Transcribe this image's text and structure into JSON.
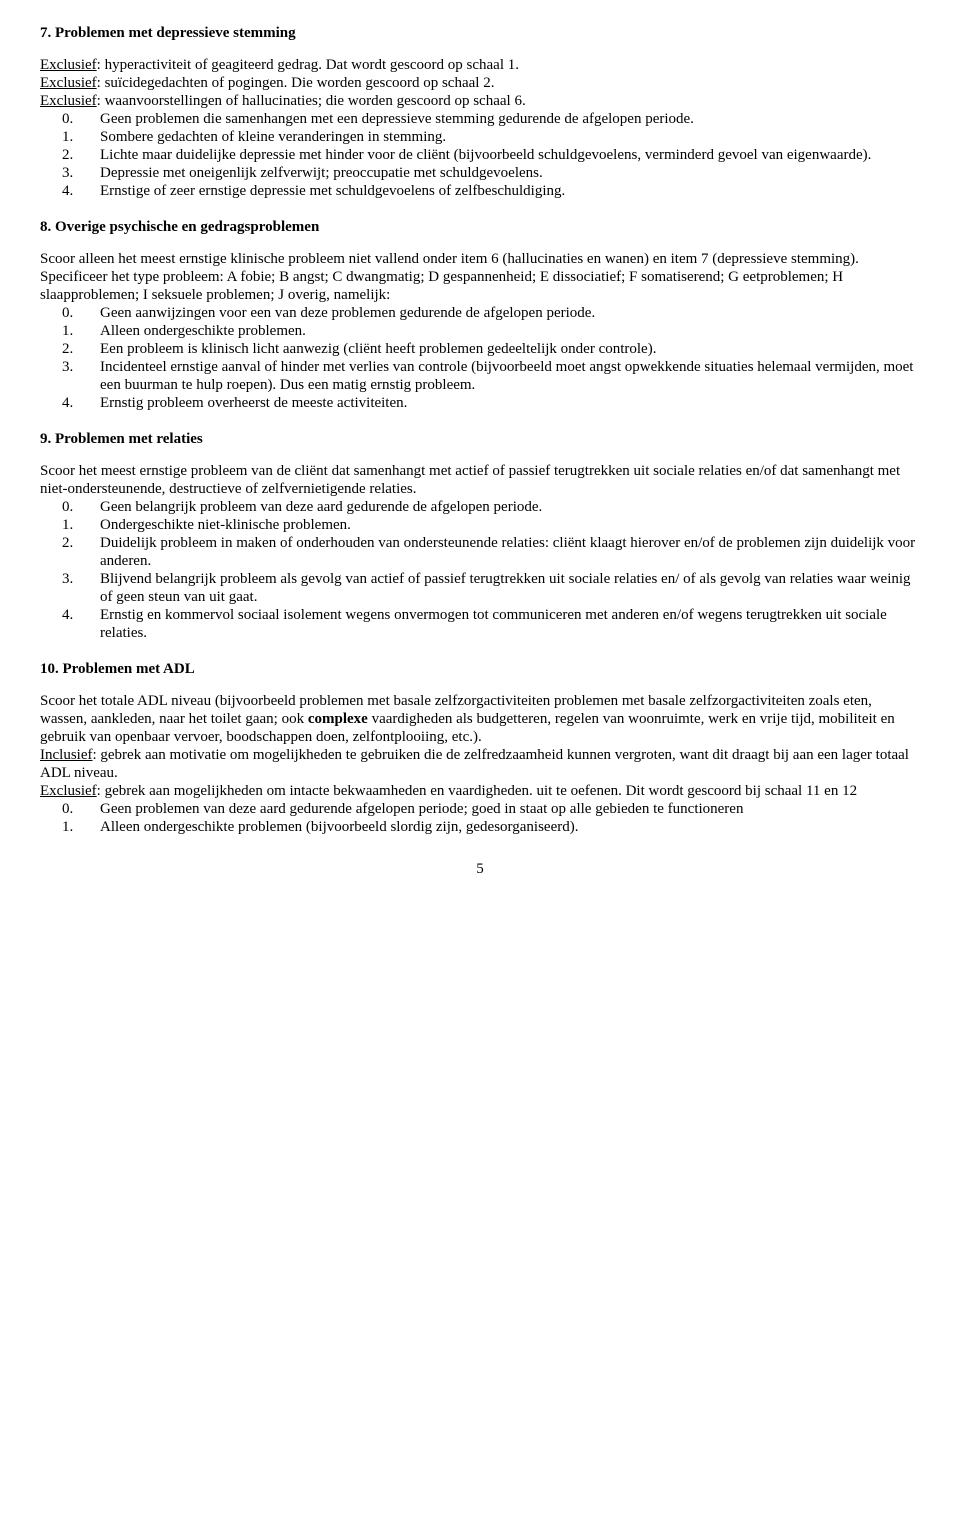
{
  "page_number": "5",
  "sections": [
    {
      "heading": "7. Problemen met depressieve stemming",
      "intro": [
        {
          "underlined": "Exclusief",
          "rest": ": hyperactiviteit of geagiteerd gedrag. Dat wordt gescoord op schaal 1."
        },
        {
          "underlined": "Exclusief",
          "rest": ": suïcidegedachten of pogingen. Die worden gescoord op schaal 2."
        },
        {
          "underlined": "Exclusief",
          "rest": ": waanvoorstellingen of hallucinaties; die worden gescoord op schaal 6."
        }
      ],
      "items": [
        {
          "n": "0.",
          "t": "Geen problemen die samenhangen met een depressieve stemming gedurende de afgelopen periode."
        },
        {
          "n": "1.",
          "t": "Sombere gedachten of kleine veranderingen in stemming."
        },
        {
          "n": "2.",
          "t": "Lichte maar duidelijke depressie met hinder voor de cliënt (bijvoorbeeld schuldgevoelens, verminderd gevoel van eigenwaarde)."
        },
        {
          "n": "3.",
          "t": "Depressie met oneigenlijk zelfverwijt; preoccupatie met schuldgevoelens."
        },
        {
          "n": "4.",
          "t": "Ernstige of zeer ernstige depressie met schuldgevoelens of zelfbeschuldiging."
        }
      ]
    },
    {
      "heading": "8. Overige psychische en gedragsproblemen",
      "intro_plain": [
        "Scoor alleen het meest ernstige klinische probleem niet vallend onder item 6 (hallucinaties en wanen) en item 7 (depressieve stemming).",
        "Specificeer het type probleem: A fobie; B angst; C dwangmatig; D gespannenheid; E dissociatief; F somatiserend; G eetproblemen; H slaapproblemen; I seksuele problemen; J overig, namelijk:"
      ],
      "items": [
        {
          "n": "0.",
          "t": "Geen aanwijzingen voor een van deze problemen gedurende de afgelopen periode."
        },
        {
          "n": "1.",
          "t": "Alleen ondergeschikte problemen."
        },
        {
          "n": "2.",
          "t": "Een probleem is klinisch licht aanwezig (cliënt heeft problemen gedeeltelijk onder controle)."
        },
        {
          "n": "3.",
          "t": "Incidenteel ernstige aanval of hinder met verlies van controle (bijvoorbeeld moet angst opwekkende situaties helemaal vermijden, moet een buurman te hulp roepen). Dus een matig ernstig probleem."
        },
        {
          "n": "4.",
          "t": "Ernstig probleem overheerst de meeste activiteiten."
        }
      ]
    },
    {
      "heading": "9. Problemen met relaties",
      "intro_plain": [
        "Scoor het meest ernstige probleem van de cliënt dat samenhangt met actief of passief terugtrekken uit sociale relaties en/of dat samenhangt met niet-ondersteunende, destructieve of zelfvernietigende relaties."
      ],
      "items": [
        {
          "n": "0.",
          "t": "Geen belangrijk probleem van deze aard gedurende de afgelopen periode."
        },
        {
          "n": "1.",
          "t": "Ondergeschikte niet-klinische problemen."
        },
        {
          "n": "2.",
          "t": "Duidelijk probleem in maken of onderhouden van ondersteunende relaties: cliënt klaagt hierover en/of de problemen zijn duidelijk voor anderen."
        },
        {
          "n": "3.",
          "t": "Blijvend belangrijk probleem als gevolg van actief of passief terugtrekken uit sociale relaties en/ of als gevolg van relaties waar weinig of geen steun van uit gaat."
        },
        {
          "n": "4.",
          "t": "Ernstig en kommervol sociaal isolement wegens onvermogen tot communiceren met anderen en/of  wegens terugtrekken uit sociale relaties."
        }
      ]
    },
    {
      "heading": "10. Problemen met ADL",
      "intro_mixed": {
        "p1_pre": "Scoor het totale ADL niveau (bijvoorbeeld problemen met basale zelfzorgactiviteiten problemen met basale zelfzorgactiviteiten zoals eten, wassen, aankleden, naar het toilet gaan; ook ",
        "p1_bold": "complexe",
        "p1_post": " vaardigheden als budgetteren, regelen van woonruimte, werk en vrije tijd, mobiliteit en gebruik van openbaar vervoer, boodschappen doen, zelfontplooiing, etc.).",
        "p2_u": "Inclusief",
        "p2_rest": ": gebrek aan motivatie om mogelijkheden te gebruiken die de zelfredzaamheid kunnen vergroten, want dit draagt bij aan een lager totaal ADL niveau.",
        "p3_u": "Exclusief",
        "p3_rest": ": gebrek aan mogelijkheden om intacte bekwaamheden en vaardigheden. uit te oefenen. Dit wordt gescoord bij schaal 11 en 12"
      },
      "items": [
        {
          "n": "0.",
          "t": "Geen problemen van deze aard gedurende afgelopen periode; goed in staat op alle gebieden te functioneren"
        },
        {
          "n": "1.",
          "t": "Alleen ondergeschikte problemen (bijvoorbeeld slordig zijn, gedesorganiseerd)."
        }
      ]
    }
  ]
}
